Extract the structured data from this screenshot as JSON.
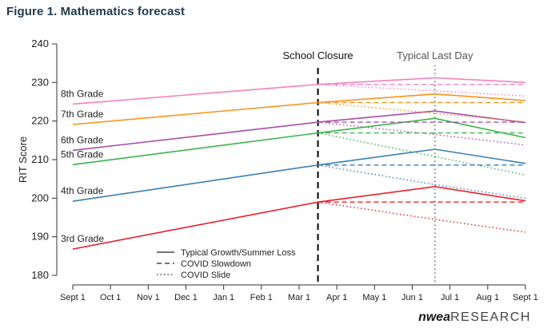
{
  "figure_title": "Figure 1. Mathematics forecast",
  "brand": {
    "nwea": "nwea",
    "research": "RESEARCH"
  },
  "chart_data": {
    "type": "line",
    "title": "",
    "xlabel": "",
    "ylabel": "RIT Score",
    "x_ticks": [
      "Sept 1",
      "Oct 1",
      "Nov 1",
      "Dec 1",
      "Jan 1",
      "Feb 1",
      "Mar 1",
      "Apr 1",
      "May 1",
      "Jun 1",
      "Jul 1",
      "Aug 1",
      "Sept 1"
    ],
    "y_ticks": [
      180,
      190,
      200,
      210,
      220,
      230,
      240
    ],
    "ylim": [
      180,
      240
    ],
    "grid": false,
    "markers": [
      {
        "label": "School Closure",
        "month": 6.5,
        "style": "dashed",
        "color": "#000000"
      },
      {
        "label": "Typical Last Day",
        "month": 9.6,
        "style": "dotted",
        "color": "#666666"
      }
    ],
    "legend": {
      "position": "bottom-left",
      "entries": [
        {
          "label": "Typical Growth/Summer Loss",
          "style": "solid"
        },
        {
          "label": "COVID Slowdown",
          "style": "dashed"
        },
        {
          "label": "COVID Slide",
          "style": "dotted"
        }
      ]
    },
    "series": [
      {
        "name": "3rd Grade",
        "color": "#e8202a",
        "typical": [
          [
            0,
            186.8
          ],
          [
            6.5,
            199.0
          ],
          [
            9.6,
            203.0
          ],
          [
            12,
            199.3
          ]
        ],
        "slowdown": [
          [
            6.5,
            199.0
          ],
          [
            12,
            199.0
          ]
        ],
        "slide": [
          [
            6.5,
            199.0
          ],
          [
            9.6,
            194.5
          ],
          [
            12,
            191.2
          ]
        ]
      },
      {
        "name": "4th Grade",
        "color": "#3a7fb5",
        "typical": [
          [
            0,
            199.2
          ],
          [
            6.5,
            208.6
          ],
          [
            9.6,
            212.7
          ],
          [
            12,
            209.0
          ]
        ],
        "slowdown": [
          [
            6.5,
            208.6
          ],
          [
            12,
            208.6
          ]
        ],
        "slide": [
          [
            6.5,
            208.6
          ],
          [
            9.6,
            203.5
          ],
          [
            12,
            200.0
          ]
        ]
      },
      {
        "name": "5th Grade",
        "color": "#3cb34a",
        "typical": [
          [
            0,
            208.7
          ],
          [
            6.5,
            216.9
          ],
          [
            9.6,
            220.7
          ],
          [
            12,
            215.7
          ]
        ],
        "slowdown": [
          [
            6.5,
            216.9
          ],
          [
            12,
            216.9
          ]
        ],
        "slide": [
          [
            6.5,
            216.9
          ],
          [
            9.6,
            210.8
          ],
          [
            12,
            206.0
          ]
        ]
      },
      {
        "name": "6th Grade",
        "color": "#a84da8",
        "typical": [
          [
            0,
            212.4
          ],
          [
            6.5,
            219.7
          ],
          [
            9.6,
            222.6
          ],
          [
            12,
            219.6
          ]
        ],
        "slowdown": [
          [
            6.5,
            219.7
          ],
          [
            12,
            219.7
          ]
        ],
        "slide": [
          [
            6.5,
            219.7
          ],
          [
            9.6,
            216.5
          ],
          [
            12,
            213.8
          ]
        ]
      },
      {
        "name": "7th Grade",
        "color": "#f7941d",
        "typical": [
          [
            0,
            219.1
          ],
          [
            6.5,
            224.8
          ],
          [
            9.6,
            227.0
          ],
          [
            12,
            225.3
          ]
        ],
        "slowdown": [
          [
            6.5,
            224.8
          ],
          [
            12,
            224.8
          ]
        ],
        "slide": [
          [
            6.5,
            224.8
          ],
          [
            9.6,
            222.0
          ],
          [
            12,
            219.8
          ]
        ]
      },
      {
        "name": "8th Grade",
        "color": "#f77fbe",
        "typical": [
          [
            0,
            224.4
          ],
          [
            6.5,
            229.5
          ],
          [
            9.6,
            231.2
          ],
          [
            12,
            230.0
          ]
        ],
        "slowdown": [
          [
            6.5,
            229.5
          ],
          [
            12,
            229.5
          ]
        ],
        "slide": [
          [
            6.5,
            229.5
          ],
          [
            9.6,
            227.8
          ],
          [
            12,
            226.5
          ]
        ]
      }
    ]
  }
}
